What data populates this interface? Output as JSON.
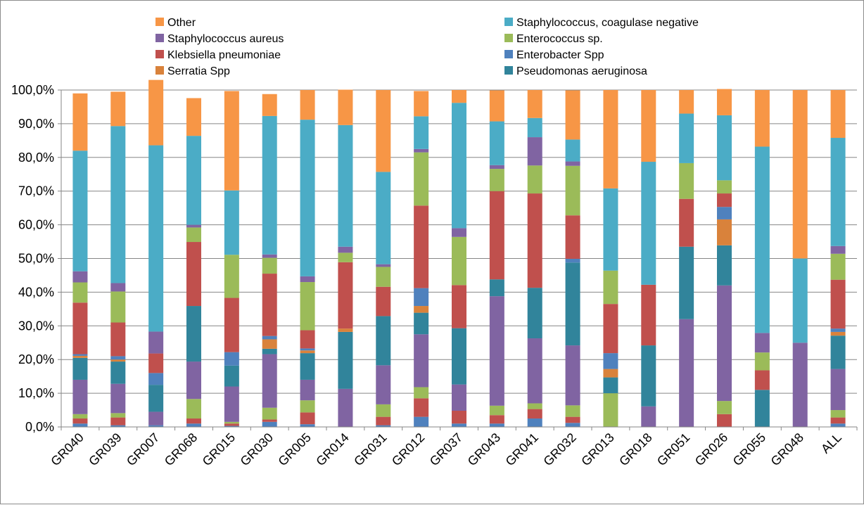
{
  "chart_data": {
    "type": "bar",
    "stacked": true,
    "percent_stacked": true,
    "grid": true,
    "legend_position": "top",
    "ylim": [
      0,
      100
    ],
    "yticks": [
      "0,0%",
      "10,0%",
      "20,0%",
      "30,0%",
      "40,0%",
      "50,0%",
      "60,0%",
      "70,0%",
      "80,0%",
      "90,0%",
      "100,0%"
    ],
    "categories": [
      "GR040",
      "GR039",
      "GR007",
      "GR068",
      "GR015",
      "GR030",
      "GR005",
      "GR014",
      "GR031",
      "GR012",
      "GR037",
      "GR043",
      "GR041",
      "GR032",
      "GR013",
      "GR018",
      "GR051",
      "GR026",
      "GR055",
      "GR048",
      "ALL"
    ],
    "legend": [
      {
        "name": "Other",
        "color": "#f79646"
      },
      {
        "name": "Staphylococcus, coagulase negative",
        "color": "#4bacc6"
      },
      {
        "name": "Staphylococcus aureus",
        "color": "#8064a2"
      },
      {
        "name": "Enterococcus sp.",
        "color": "#9bbb59"
      },
      {
        "name": "Klebsiella pneumoniae",
        "color": "#c0504d"
      },
      {
        "name": "Enterobacter Spp",
        "color": "#4f81bd"
      },
      {
        "name": "Serratia Spp",
        "color": "#d9823b"
      },
      {
        "name": "Pseudomonas aeruginosa",
        "color": "#31849b"
      }
    ],
    "series": [
      {
        "key": "s1",
        "color": "#4f81bd",
        "values": [
          1.0,
          0.5,
          0.5,
          1.0,
          0.3,
          1.5,
          0.8,
          0,
          0.5,
          3.0,
          1.0,
          1.0,
          2.5,
          1.2,
          0,
          0,
          0,
          0,
          0,
          0,
          1.0
        ]
      },
      {
        "key": "s2",
        "color": "#c0504d",
        "values": [
          1.5,
          2.3,
          0,
          1.5,
          0.7,
          0.7,
          3.5,
          0,
          2.5,
          5.5,
          3.8,
          2.5,
          2.8,
          1.8,
          0,
          0,
          0,
          3.8,
          0,
          0,
          1.8
        ]
      },
      {
        "key": "s3",
        "color": "#9bbb59",
        "values": [
          1.3,
          1.3,
          0,
          5.8,
          0.5,
          3.5,
          3.6,
          0,
          3.7,
          3.3,
          0,
          2.8,
          1.7,
          3.4,
          10.0,
          0,
          0,
          3.9,
          0,
          0,
          2.2
        ]
      },
      {
        "key": "s4",
        "color": "#8064a2",
        "values": [
          10.2,
          8.7,
          4.0,
          11.1,
          10.5,
          15.9,
          6.1,
          11.3,
          11.6,
          15.7,
          7.8,
          32.5,
          19.3,
          17.8,
          0,
          6.1,
          32.0,
          34.3,
          0,
          25.0,
          12.2
        ]
      },
      {
        "key": "s5",
        "color": "#31849b",
        "values": [
          6.5,
          6.6,
          8.0,
          16.5,
          6.2,
          1.6,
          7.9,
          16.9,
          14.6,
          6.4,
          16.7,
          5.0,
          15.0,
          24.6,
          4.7,
          18.1,
          21.5,
          11.9,
          11.0,
          0,
          9.9
        ]
      },
      {
        "key": "s6",
        "color": "#d9823b",
        "values": [
          0.6,
          0.6,
          0,
          0,
          0,
          2.8,
          0.8,
          1.0,
          0,
          2.0,
          0,
          0,
          0,
          0,
          2.5,
          0,
          0,
          7.7,
          0,
          0,
          1.1
        ]
      },
      {
        "key": "s7",
        "color": "#4f81bd",
        "values": [
          0.5,
          1.0,
          3.5,
          0,
          4.0,
          1.0,
          0.6,
          0,
          0,
          5.3,
          0,
          0,
          0,
          1.1,
          4.7,
          0,
          0,
          3.7,
          0,
          0,
          1.0
        ]
      },
      {
        "key": "s8",
        "color": "#c0504d",
        "values": [
          15.3,
          10.0,
          5.8,
          19.0,
          16.1,
          18.5,
          5.4,
          19.7,
          8.7,
          24.5,
          12.8,
          26.2,
          28.0,
          12.9,
          14.6,
          18.0,
          14.2,
          4.0,
          5.8,
          0,
          14.5
        ]
      },
      {
        "key": "s9",
        "color": "#9bbb59",
        "values": [
          6.0,
          9.2,
          0,
          4.3,
          12.8,
          4.7,
          14.3,
          2.8,
          5.9,
          15.8,
          14.3,
          6.6,
          8.3,
          14.7,
          9.9,
          0,
          10.6,
          3.9,
          5.3,
          0,
          7.7
        ]
      },
      {
        "key": "s10",
        "color": "#8064a2",
        "values": [
          3.3,
          2.5,
          6.5,
          0.8,
          0,
          1.0,
          1.7,
          1.8,
          0.8,
          1.0,
          2.6,
          1.1,
          8.4,
          1.3,
          0,
          0,
          0,
          0,
          5.8,
          0,
          2.3
        ]
      },
      {
        "key": "s11",
        "color": "#4bacc6",
        "values": [
          35.8,
          46.6,
          55.3,
          26.4,
          19.1,
          41.1,
          46.5,
          36.1,
          27.4,
          9.7,
          37.2,
          13.0,
          5.7,
          6.5,
          24.4,
          36.5,
          14.7,
          19.3,
          55.3,
          25.0,
          32.1
        ]
      },
      {
        "key": "s12",
        "color": "#f79646",
        "values": [
          17.0,
          10.2,
          19.4,
          11.2,
          29.5,
          6.5,
          8.8,
          10.5,
          24.3,
          7.5,
          3.8,
          9.2,
          8.3,
          14.6,
          29.2,
          21.3,
          7.0,
          7.8,
          16.8,
          50.0,
          14.2
        ]
      }
    ]
  }
}
